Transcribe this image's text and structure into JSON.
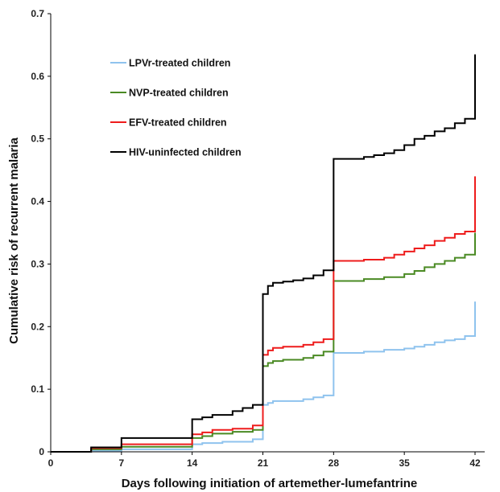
{
  "chart_data": {
    "type": "line",
    "step": true,
    "xlabel": "Days following initiation of artemether-lumefantrine",
    "ylabel": "Cumulative risk of recurrent malaria",
    "xlim": [
      0,
      42
    ],
    "ylim": [
      0,
      0.7
    ],
    "xticks": [
      "0",
      "7",
      "14",
      "21",
      "28",
      "35",
      "42"
    ],
    "yticks": [
      "0",
      "0.1",
      "0.2",
      "0.3",
      "0.4",
      "0.5",
      "0.6",
      "0.7"
    ],
    "grid": false,
    "legend_position": "top-left",
    "series": [
      {
        "name": "LPVr-treated children",
        "color": "#8fc3ee",
        "x": [
          0,
          4,
          7,
          14,
          15,
          17,
          20,
          21,
          21.5,
          22,
          25,
          26,
          27,
          28,
          28,
          31,
          33,
          35,
          36,
          37,
          38,
          39,
          40,
          41,
          42,
          42
        ],
        "y": [
          0,
          0.002,
          0.004,
          0.012,
          0.014,
          0.016,
          0.02,
          0.075,
          0.078,
          0.081,
          0.084,
          0.087,
          0.09,
          0.09,
          0.158,
          0.16,
          0.163,
          0.165,
          0.168,
          0.171,
          0.175,
          0.178,
          0.18,
          0.185,
          0.19,
          0.24
        ]
      },
      {
        "name": "NVP-treated children",
        "color": "#4a8a23",
        "x": [
          0,
          4,
          7,
          14,
          15,
          16,
          18,
          20,
          21,
          21.5,
          22,
          23,
          25,
          26,
          27,
          28,
          28,
          31,
          33,
          35,
          36,
          37,
          38,
          39,
          40,
          41,
          42,
          42
        ],
        "y": [
          0,
          0.004,
          0.008,
          0.022,
          0.025,
          0.029,
          0.032,
          0.035,
          0.137,
          0.142,
          0.145,
          0.147,
          0.15,
          0.154,
          0.16,
          0.16,
          0.273,
          0.276,
          0.279,
          0.284,
          0.289,
          0.295,
          0.3,
          0.305,
          0.31,
          0.315,
          0.318,
          0.35
        ]
      },
      {
        "name": "EFV-treated children",
        "color": "#ee1c1c",
        "x": [
          0,
          4,
          7,
          14,
          15,
          16,
          18,
          20,
          21,
          21.5,
          22,
          23,
          25,
          26,
          27,
          28,
          28,
          31,
          33,
          34,
          35,
          36,
          37,
          38,
          39,
          40,
          41,
          42,
          42
        ],
        "y": [
          0,
          0.006,
          0.012,
          0.028,
          0.031,
          0.035,
          0.037,
          0.042,
          0.155,
          0.162,
          0.166,
          0.168,
          0.171,
          0.175,
          0.18,
          0.18,
          0.305,
          0.307,
          0.31,
          0.315,
          0.32,
          0.325,
          0.33,
          0.337,
          0.342,
          0.348,
          0.352,
          0.356,
          0.44
        ]
      },
      {
        "name": "HIV-uninfected children",
        "color": "#000000",
        "x": [
          0,
          4,
          7,
          14,
          15,
          16,
          18,
          19,
          20,
          21,
          21.5,
          22,
          23,
          24,
          25,
          26,
          27,
          28,
          28,
          31,
          32,
          33,
          34,
          35,
          36,
          37,
          38,
          39,
          40,
          41,
          42,
          42
        ],
        "y": [
          0,
          0.007,
          0.022,
          0.052,
          0.055,
          0.059,
          0.065,
          0.07,
          0.075,
          0.252,
          0.265,
          0.27,
          0.272,
          0.274,
          0.277,
          0.282,
          0.29,
          0.29,
          0.468,
          0.471,
          0.474,
          0.477,
          0.482,
          0.49,
          0.5,
          0.505,
          0.512,
          0.517,
          0.525,
          0.532,
          0.533,
          0.635
        ]
      }
    ]
  }
}
